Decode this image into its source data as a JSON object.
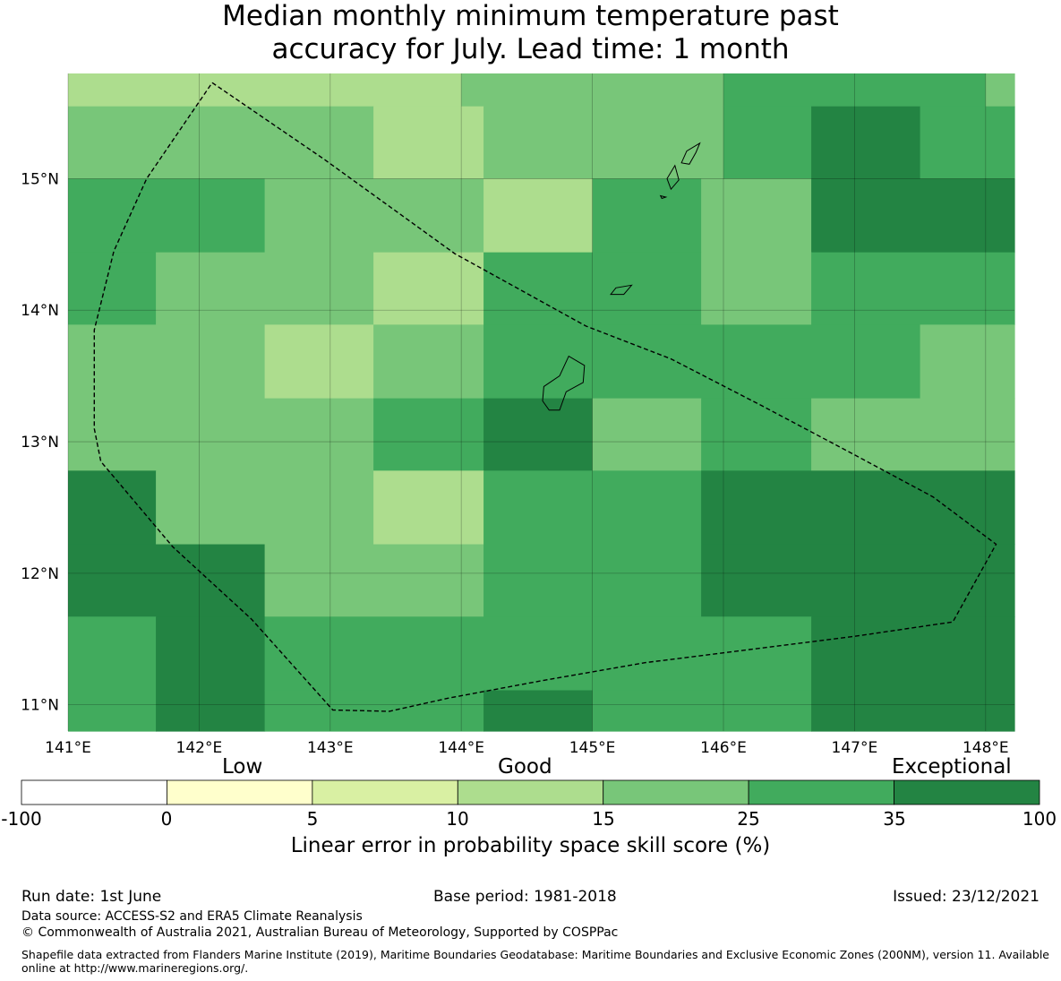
{
  "title": {
    "line1": "Median monthly minimum temperature past",
    "line2": "accuracy for July. Lead time: 1 month"
  },
  "map": {
    "lon_labels": [
      "141°E",
      "142°E",
      "143°E",
      "144°E",
      "145°E",
      "146°E",
      "147°E",
      "148°E"
    ],
    "lat_labels": [
      "15°N",
      "14°N",
      "13°N",
      "12°N",
      "11°N"
    ],
    "lon_ticks": [
      141,
      142,
      143,
      144,
      145,
      146,
      147,
      148
    ],
    "lat_ticks": [
      15,
      14,
      13,
      12,
      11
    ],
    "extent": {
      "lon_min": 141.0,
      "lon_max": 148.22,
      "lat_min": 10.8,
      "lat_max": 15.8
    },
    "colors": {
      "0-5": "#ffffcc",
      "5-10": "#d9f0a3",
      "10-15": "#addd8e",
      "15-25": "#78c679",
      "25-35": "#41ab5d",
      "35-100": "#238443"
    },
    "cells": [
      {
        "lon": [
          141.0,
          142.0
        ],
        "lat": [
          15.55,
          15.8
        ],
        "bin": "10-15"
      },
      {
        "lon": [
          142.0,
          143.0
        ],
        "lat": [
          15.55,
          15.8
        ],
        "bin": "10-15"
      },
      {
        "lon": [
          143.0,
          144.0
        ],
        "lat": [
          15.55,
          15.8
        ],
        "bin": "10-15"
      },
      {
        "lon": [
          144.0,
          145.0
        ],
        "lat": [
          15.55,
          15.8
        ],
        "bin": "15-25"
      },
      {
        "lon": [
          145.0,
          146.0
        ],
        "lat": [
          15.55,
          15.8
        ],
        "bin": "15-25"
      },
      {
        "lon": [
          146.0,
          147.0
        ],
        "lat": [
          15.55,
          15.8
        ],
        "bin": "25-35"
      },
      {
        "lon": [
          147.0,
          148.0
        ],
        "lat": [
          15.55,
          15.8
        ],
        "bin": "25-35"
      },
      {
        "lon": [
          148.0,
          148.22
        ],
        "lat": [
          15.55,
          15.8
        ],
        "bin": "15-25"
      },
      {
        "lon": [
          141.0,
          142.0
        ],
        "lat": [
          15.0,
          15.55
        ],
        "bin": "15-25"
      },
      {
        "lon": [
          142.0,
          143.0
        ],
        "lat": [
          15.0,
          15.55
        ],
        "bin": "15-25"
      },
      {
        "lon": [
          143.0,
          143.33
        ],
        "lat": [
          15.0,
          15.55
        ],
        "bin": "15-25"
      },
      {
        "lon": [
          143.33,
          144.17
        ],
        "lat": [
          15.0,
          15.55
        ],
        "bin": "10-15"
      },
      {
        "lon": [
          144.17,
          145.0
        ],
        "lat": [
          15.0,
          15.55
        ],
        "bin": "15-25"
      },
      {
        "lon": [
          145.0,
          146.0
        ],
        "lat": [
          15.0,
          15.55
        ],
        "bin": "15-25"
      },
      {
        "lon": [
          146.0,
          146.67
        ],
        "lat": [
          15.0,
          15.55
        ],
        "bin": "25-35"
      },
      {
        "lon": [
          146.67,
          147.5
        ],
        "lat": [
          15.0,
          15.55
        ],
        "bin": "35-100"
      },
      {
        "lon": [
          147.5,
          148.22
        ],
        "lat": [
          15.0,
          15.55
        ],
        "bin": "25-35"
      },
      {
        "lon": [
          141.0,
          142.5
        ],
        "lat": [
          14.44,
          15.0
        ],
        "bin": "25-35"
      },
      {
        "lon": [
          142.5,
          144.17
        ],
        "lat": [
          14.44,
          15.0
        ],
        "bin": "15-25"
      },
      {
        "lon": [
          144.17,
          145.0
        ],
        "lat": [
          14.44,
          15.0
        ],
        "bin": "10-15"
      },
      {
        "lon": [
          145.0,
          145.83
        ],
        "lat": [
          14.44,
          15.0
        ],
        "bin": "25-35"
      },
      {
        "lon": [
          145.83,
          146.67
        ],
        "lat": [
          14.44,
          15.0
        ],
        "bin": "15-25"
      },
      {
        "lon": [
          146.67,
          148.22
        ],
        "lat": [
          14.44,
          15.0
        ],
        "bin": "35-100"
      },
      {
        "lon": [
          141.0,
          141.67
        ],
        "lat": [
          13.89,
          14.44
        ],
        "bin": "25-35"
      },
      {
        "lon": [
          141.67,
          143.33
        ],
        "lat": [
          13.89,
          14.44
        ],
        "bin": "15-25"
      },
      {
        "lon": [
          143.33,
          144.17
        ],
        "lat": [
          13.89,
          14.44
        ],
        "bin": "10-15"
      },
      {
        "lon": [
          144.17,
          145.83
        ],
        "lat": [
          13.89,
          14.44
        ],
        "bin": "25-35"
      },
      {
        "lon": [
          145.83,
          146.67
        ],
        "lat": [
          13.89,
          14.44
        ],
        "bin": "15-25"
      },
      {
        "lon": [
          146.67,
          148.22
        ],
        "lat": [
          13.89,
          14.44
        ],
        "bin": "25-35"
      },
      {
        "lon": [
          141.0,
          142.5
        ],
        "lat": [
          13.33,
          13.89
        ],
        "bin": "15-25"
      },
      {
        "lon": [
          142.5,
          143.33
        ],
        "lat": [
          13.33,
          13.89
        ],
        "bin": "10-15"
      },
      {
        "lon": [
          143.33,
          144.17
        ],
        "lat": [
          13.33,
          13.89
        ],
        "bin": "15-25"
      },
      {
        "lon": [
          144.17,
          147.5
        ],
        "lat": [
          13.33,
          13.89
        ],
        "bin": "25-35"
      },
      {
        "lon": [
          147.5,
          148.22
        ],
        "lat": [
          13.33,
          13.89
        ],
        "bin": "15-25"
      },
      {
        "lon": [
          141.0,
          143.33
        ],
        "lat": [
          12.78,
          13.33
        ],
        "bin": "15-25"
      },
      {
        "lon": [
          143.33,
          144.17
        ],
        "lat": [
          12.78,
          13.33
        ],
        "bin": "25-35"
      },
      {
        "lon": [
          144.17,
          145.0
        ],
        "lat": [
          12.78,
          13.33
        ],
        "bin": "35-100"
      },
      {
        "lon": [
          145.0,
          145.83
        ],
        "lat": [
          12.78,
          13.33
        ],
        "bin": "15-25"
      },
      {
        "lon": [
          145.83,
          146.67
        ],
        "lat": [
          12.78,
          13.33
        ],
        "bin": "25-35"
      },
      {
        "lon": [
          146.67,
          148.22
        ],
        "lat": [
          12.78,
          13.33
        ],
        "bin": "15-25"
      },
      {
        "lon": [
          141.0,
          141.67
        ],
        "lat": [
          12.22,
          12.78
        ],
        "bin": "35-100"
      },
      {
        "lon": [
          141.67,
          143.33
        ],
        "lat": [
          12.22,
          12.78
        ],
        "bin": "15-25"
      },
      {
        "lon": [
          143.33,
          144.17
        ],
        "lat": [
          12.22,
          12.78
        ],
        "bin": "10-15"
      },
      {
        "lon": [
          144.17,
          145.83
        ],
        "lat": [
          12.22,
          12.78
        ],
        "bin": "25-35"
      },
      {
        "lon": [
          145.83,
          148.22
        ],
        "lat": [
          12.22,
          12.78
        ],
        "bin": "35-100"
      },
      {
        "lon": [
          141.0,
          142.5
        ],
        "lat": [
          11.67,
          12.22
        ],
        "bin": "35-100"
      },
      {
        "lon": [
          142.5,
          144.17
        ],
        "lat": [
          11.67,
          12.22
        ],
        "bin": "15-25"
      },
      {
        "lon": [
          144.17,
          145.83
        ],
        "lat": [
          11.67,
          12.22
        ],
        "bin": "25-35"
      },
      {
        "lon": [
          145.83,
          148.22
        ],
        "lat": [
          11.67,
          12.22
        ],
        "bin": "35-100"
      },
      {
        "lon": [
          141.0,
          141.67
        ],
        "lat": [
          10.8,
          11.67
        ],
        "bin": "25-35"
      },
      {
        "lon": [
          141.67,
          142.5
        ],
        "lat": [
          10.8,
          11.67
        ],
        "bin": "35-100"
      },
      {
        "lon": [
          142.5,
          146.67
        ],
        "lat": [
          11.11,
          11.67
        ],
        "bin": "25-35"
      },
      {
        "lon": [
          142.5,
          144.17
        ],
        "lat": [
          10.8,
          11.11
        ],
        "bin": "25-35"
      },
      {
        "lon": [
          144.17,
          145.0
        ],
        "lat": [
          10.8,
          11.11
        ],
        "bin": "35-100"
      },
      {
        "lon": [
          145.0,
          146.67
        ],
        "lat": [
          10.8,
          11.11
        ],
        "bin": "25-35"
      },
      {
        "lon": [
          146.67,
          148.22
        ],
        "lat": [
          10.8,
          11.67
        ],
        "bin": "35-100"
      }
    ],
    "eez_boundary": [
      [
        142.1,
        15.73
      ],
      [
        142.95,
        15.15
      ],
      [
        143.95,
        14.43
      ],
      [
        144.95,
        13.88
      ],
      [
        145.6,
        13.63
      ],
      [
        146.3,
        13.27
      ],
      [
        147.0,
        12.9
      ],
      [
        147.6,
        12.58
      ],
      [
        148.08,
        12.22
      ],
      [
        147.75,
        11.63
      ],
      [
        147.0,
        11.52
      ],
      [
        146.2,
        11.42
      ],
      [
        145.4,
        11.32
      ],
      [
        144.6,
        11.18
      ],
      [
        143.9,
        11.05
      ],
      [
        143.45,
        10.95
      ],
      [
        143.02,
        10.96
      ],
      [
        142.4,
        11.65
      ],
      [
        141.8,
        12.2
      ],
      [
        141.25,
        12.85
      ],
      [
        141.2,
        13.1
      ],
      [
        141.2,
        13.85
      ],
      [
        141.35,
        14.45
      ],
      [
        141.6,
        15.0
      ],
      [
        142.1,
        15.73
      ]
    ],
    "islands": [
      [
        [
          144.82,
          13.65
        ],
        [
          144.94,
          13.58
        ],
        [
          144.93,
          13.45
        ],
        [
          144.8,
          13.38
        ],
        [
          144.75,
          13.24
        ],
        [
          144.67,
          13.24
        ],
        [
          144.62,
          13.31
        ],
        [
          144.63,
          13.42
        ],
        [
          144.75,
          13.5
        ],
        [
          144.82,
          13.65
        ]
      ],
      [
        [
          145.82,
          15.27
        ],
        [
          145.72,
          15.21
        ],
        [
          145.68,
          15.12
        ],
        [
          145.74,
          15.11
        ],
        [
          145.79,
          15.2
        ],
        [
          145.82,
          15.27
        ]
      ],
      [
        [
          145.63,
          15.1
        ],
        [
          145.66,
          14.99
        ],
        [
          145.6,
          14.92
        ],
        [
          145.57,
          15.0
        ],
        [
          145.63,
          15.1
        ]
      ],
      [
        [
          145.56,
          14.86
        ],
        [
          145.53,
          14.85
        ],
        [
          145.52,
          14.87
        ],
        [
          145.56,
          14.86
        ]
      ],
      [
        [
          145.3,
          14.19
        ],
        [
          145.24,
          14.12
        ],
        [
          145.14,
          14.12
        ],
        [
          145.18,
          14.17
        ],
        [
          145.3,
          14.19
        ]
      ]
    ]
  },
  "colorbar": {
    "categories": [
      "Low",
      "Good",
      "Exceptional"
    ],
    "ticks": [
      "-100",
      "0",
      "5",
      "10",
      "15",
      "25",
      "35",
      "100"
    ],
    "segment_colors": [
      "#ffffff",
      "#ffffcc",
      "#d9f0a3",
      "#addd8e",
      "#78c679",
      "#41ab5d",
      "#238443"
    ],
    "label": "Linear error in probability space skill score (%)"
  },
  "footer": {
    "run_date": "Run date: 1st June",
    "base_period": "Base period: 1981-2018",
    "issued": "Issued: 23/12/2021",
    "data_source": "Data source: ACCESS-S2 and ERA5 Climate Reanalysis",
    "copyright": "© Commonwealth of Australia 2021, Australian Bureau of Meteorology, Supported by COSPPac",
    "shapefile": "Shapefile data extracted from Flanders Marine Institute (2019), Maritime Boundaries Geodatabase: Maritime Boundaries and Exclusive Economic Zones (200NM), version 11. Available online at http://www.marineregions.org/."
  }
}
